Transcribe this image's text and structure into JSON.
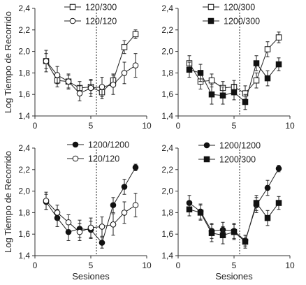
{
  "chart_data": [
    {
      "type": "line",
      "title": "",
      "xlabel": "",
      "ylabel": "Log Tiempo de Recorrido",
      "x": [
        1,
        2,
        3,
        4,
        5,
        6,
        7,
        8,
        9
      ],
      "xlim": [
        0,
        10
      ],
      "ylim": [
        1.4,
        2.4
      ],
      "xticks": [
        "0",
        "5",
        "10"
      ],
      "yticks": [
        "1,4",
        "1,6",
        "1,8",
        "2,0",
        "2,2",
        "2,4"
      ],
      "divider_x": 5.5,
      "grid": false,
      "legend": "top-center",
      "series": [
        {
          "name": "120/300",
          "marker": "open-square",
          "values": [
            1.91,
            1.73,
            1.72,
            1.66,
            1.67,
            1.62,
            1.73,
            2.04,
            2.16
          ],
          "errors": [
            0.07,
            0.06,
            0.06,
            0.06,
            0.06,
            0.06,
            0.06,
            0.06,
            0.04
          ]
        },
        {
          "name": "120/120",
          "marker": "open-circle",
          "values": [
            1.91,
            1.78,
            1.72,
            1.61,
            1.66,
            1.67,
            1.69,
            1.8,
            1.87
          ],
          "errors": [
            0.1,
            0.08,
            0.07,
            0.07,
            0.08,
            0.09,
            0.09,
            0.1,
            0.11
          ]
        }
      ]
    },
    {
      "type": "line",
      "title": "",
      "xlabel": "",
      "ylabel": "",
      "x": [
        1,
        2,
        3,
        4,
        5,
        6,
        7,
        8,
        9
      ],
      "xlim": [
        0,
        10
      ],
      "ylim": [
        1.4,
        2.4
      ],
      "xticks": [
        "0",
        "5",
        "10"
      ],
      "yticks": [
        "1,4",
        "1,6",
        "1,8",
        "2,0",
        "2,2",
        "2,4"
      ],
      "divider_x": 5.5,
      "grid": false,
      "legend": "top-center",
      "series": [
        {
          "name": "120/300",
          "marker": "open-square",
          "values": [
            1.89,
            1.72,
            1.73,
            1.66,
            1.67,
            1.61,
            1.73,
            2.02,
            2.13
          ],
          "errors": [
            0.07,
            0.07,
            0.06,
            0.06,
            0.06,
            0.07,
            0.07,
            0.07,
            0.05
          ]
        },
        {
          "name": "1200/300",
          "marker": "filled-square",
          "values": [
            1.83,
            1.8,
            1.6,
            1.59,
            1.62,
            1.53,
            1.89,
            1.75,
            1.88
          ],
          "errors": [
            0.07,
            0.08,
            0.09,
            0.08,
            0.07,
            0.07,
            0.07,
            0.07,
            0.06
          ]
        }
      ]
    },
    {
      "type": "line",
      "title": "",
      "xlabel": "Sesiones",
      "ylabel": "Log Tiempo de Recorrido",
      "x": [
        1,
        2,
        3,
        4,
        5,
        6,
        7,
        8,
        9
      ],
      "xlim": [
        0,
        10
      ],
      "ylim": [
        1.4,
        2.4
      ],
      "xticks": [
        "0",
        "5",
        "10"
      ],
      "yticks": [
        "1,4",
        "1,6",
        "1,8",
        "2,0",
        "2,2",
        "2,4"
      ],
      "divider_x": 5.5,
      "grid": false,
      "legend": "top-center",
      "series": [
        {
          "name": "1200/1200",
          "marker": "filled-circle",
          "values": [
            1.9,
            1.75,
            1.62,
            1.65,
            1.64,
            1.52,
            1.87,
            2.04,
            2.22
          ],
          "errors": [
            0.07,
            0.08,
            0.08,
            0.08,
            0.08,
            0.05,
            0.07,
            0.07,
            0.03
          ]
        },
        {
          "name": "120/120",
          "marker": "open-circle",
          "values": [
            1.91,
            1.8,
            1.71,
            1.62,
            1.66,
            1.67,
            1.69,
            1.8,
            1.87
          ],
          "errors": [
            0.08,
            0.07,
            0.07,
            0.08,
            0.09,
            0.09,
            0.1,
            0.1,
            0.11
          ]
        }
      ]
    },
    {
      "type": "line",
      "title": "",
      "xlabel": "Sesiones",
      "ylabel": "",
      "x": [
        1,
        2,
        3,
        4,
        5,
        6,
        7,
        8,
        9
      ],
      "xlim": [
        0,
        10
      ],
      "ylim": [
        1.4,
        2.4
      ],
      "xticks": [
        "0",
        "5",
        "10"
      ],
      "yticks": [
        "1,4",
        "1,6",
        "1,8",
        "2,0",
        "2,2",
        "2,4"
      ],
      "divider_x": 5.5,
      "grid": false,
      "legend": "top-center",
      "series": [
        {
          "name": "1200/1200",
          "marker": "filled-circle",
          "values": [
            1.89,
            1.81,
            1.63,
            1.64,
            1.63,
            1.54,
            1.87,
            2.03,
            2.21
          ],
          "errors": [
            0.07,
            0.07,
            0.07,
            0.07,
            0.07,
            0.05,
            0.07,
            0.07,
            0.03
          ]
        },
        {
          "name": "1200/300",
          "marker": "filled-square",
          "values": [
            1.83,
            1.8,
            1.61,
            1.59,
            1.62,
            1.53,
            1.89,
            1.75,
            1.89
          ],
          "errors": [
            0.06,
            0.07,
            0.08,
            0.08,
            0.07,
            0.06,
            0.07,
            0.07,
            0.06
          ]
        }
      ]
    }
  ]
}
